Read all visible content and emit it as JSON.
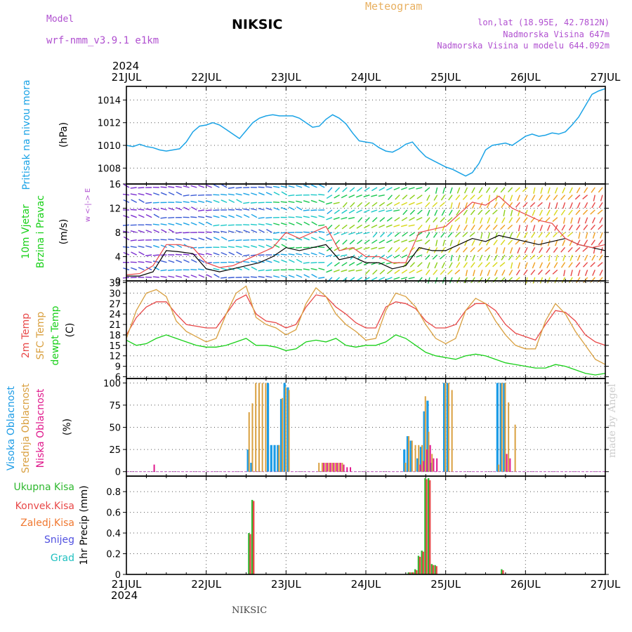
{
  "header": {
    "model_label": "Model",
    "model_name": "wrf-nmm_v3.9.1 e1km",
    "station": "NIKSIC",
    "chart_title": "Meteogram",
    "coords": "lon,lat (18.95E, 42.7812N)",
    "elevation": "Nadmorska Visina 647m",
    "model_elevation": "Nadmorska Visina u modelu 644.092m",
    "footer_station": "NIKSIC",
    "watermark": "made by Angel"
  },
  "colors": {
    "pressure": "#1aa3e6",
    "temp2m": "#e84848",
    "sfc": "#d9a040",
    "dewpt": "#18d018",
    "high_cloud": "#1a9be6",
    "mid_cloud": "#d9a040",
    "low_cloud": "#e0198c",
    "total_precip": "#2fb82f",
    "conv_precip": "#e84848",
    "frozen": "#f07830",
    "snow": "#5050e0",
    "hail": "#20c0c0",
    "grid": "#555555",
    "wind_avg": "#000000",
    "gust": "#e84848"
  },
  "chart_data": {
    "type": "meteogram",
    "year": "2024",
    "x_ticks": [
      "21JUL",
      "22JUL",
      "23JUL",
      "24JUL",
      "25JUL",
      "26JUL",
      "27JUL"
    ],
    "x_hours": [
      0,
      24,
      48,
      72,
      96,
      120,
      144
    ],
    "panels": [
      {
        "id": "pressure",
        "type": "line",
        "ylabels": [
          "Pritisak na nivou mora",
          "(hPa)"
        ],
        "ylim": [
          1006.6,
          1015.2
        ],
        "yticks": [
          1008,
          1010,
          1012,
          1014
        ],
        "series": [
          {
            "name": "Pritisak na nivou mora",
            "x_hours": [
              0,
              2,
              4,
              6,
              8,
              10,
              12,
              14,
              16,
              18,
              20,
              22,
              24,
              26,
              28,
              30,
              32,
              34,
              36,
              38,
              40,
              42,
              44,
              46,
              48,
              50,
              52,
              54,
              56,
              58,
              60,
              62,
              64,
              66,
              68,
              70,
              72,
              74,
              76,
              78,
              80,
              82,
              84,
              86,
              88,
              90,
              92,
              94,
              96,
              98,
              100,
              102,
              104,
              106,
              108,
              110,
              112,
              114,
              116,
              118,
              120,
              122,
              124,
              126,
              128,
              130,
              132,
              134,
              136,
              138,
              140,
              142,
              144
            ],
            "values": [
              1010.0,
              1009.9,
              1010.1,
              1009.9,
              1009.8,
              1009.6,
              1009.5,
              1009.6,
              1009.7,
              1010.3,
              1011.2,
              1011.7,
              1011.8,
              1012.0,
              1011.8,
              1011.4,
              1011.0,
              1010.6,
              1011.3,
              1012.0,
              1012.4,
              1012.6,
              1012.7,
              1012.6,
              1012.6,
              1012.6,
              1012.4,
              1012.0,
              1011.6,
              1011.7,
              1012.3,
              1012.7,
              1012.4,
              1011.9,
              1011.1,
              1010.4,
              1010.3,
              1010.2,
              1009.8,
              1009.5,
              1009.4,
              1009.7,
              1010.1,
              1010.3,
              1009.6,
              1009.0,
              1008.7,
              1008.4,
              1008.1,
              1007.9,
              1007.6,
              1007.3,
              1007.6,
              1008.4,
              1009.6,
              1010.0,
              1010.1,
              1010.2,
              1010.0,
              1010.4,
              1010.8,
              1011.0,
              1010.8,
              1010.9,
              1011.1,
              1011.0,
              1011.2,
              1011.8,
              1012.5,
              1013.5,
              1014.5,
              1014.8,
              1015.0
            ]
          }
        ]
      },
      {
        "id": "wind",
        "type": "line+barbs",
        "ylabels": [
          "10m Vjetar",
          "Brzina i Pravac",
          "(m/s)"
        ],
        "compass": "w <-|-> E",
        "ylim": [
          0,
          16
        ],
        "yticks": [
          0,
          4,
          8,
          12,
          16
        ],
        "series": [
          {
            "name": "Brzina",
            "x_hours": [
              0,
              4,
              8,
              12,
              16,
              20,
              24,
              28,
              32,
              36,
              40,
              44,
              48,
              52,
              56,
              60,
              64,
              68,
              72,
              76,
              80,
              84,
              88,
              92,
              96,
              100,
              104,
              108,
              112,
              116,
              120,
              124,
              128,
              132,
              136,
              140,
              144
            ],
            "values": [
              0.8,
              0.8,
              1.5,
              5.0,
              4.8,
              4.5,
              2.0,
              1.5,
              2.0,
              2.5,
              3.0,
              4.0,
              5.5,
              5.0,
              5.5,
              6.0,
              3.5,
              4.0,
              3.0,
              3.0,
              2.0,
              2.5,
              5.5,
              5.0,
              5.0,
              6.0,
              7.0,
              6.5,
              7.5,
              7.0,
              6.5,
              6.0,
              6.5,
              7.0,
              6.0,
              5.5,
              5.0
            ]
          },
          {
            "name": "Udar",
            "x_hours": [
              0,
              4,
              8,
              12,
              16,
              20,
              24,
              28,
              32,
              36,
              40,
              44,
              48,
              52,
              56,
              60,
              64,
              68,
              72,
              76,
              80,
              84,
              88,
              92,
              96,
              100,
              104,
              108,
              112,
              116,
              120,
              124,
              128,
              132,
              136,
              140,
              144
            ],
            "values": [
              1.0,
              1.2,
              2.5,
              6.0,
              6.0,
              5.5,
              3.0,
              2.2,
              2.5,
              3.5,
              4.5,
              5.5,
              8.0,
              7.0,
              8.0,
              9.0,
              5.0,
              5.5,
              4.0,
              4.0,
              3.0,
              3.0,
              8.0,
              8.5,
              9.0,
              11.0,
              13.0,
              12.5,
              14.0,
              12.0,
              11.0,
              10.0,
              9.5,
              7.0,
              6.0,
              5.5,
              6.0
            ]
          }
        ]
      },
      {
        "id": "temperature",
        "type": "line",
        "ylabels": [
          "2m Temp",
          "SFC Temp",
          "dewpt Temp",
          "(C)"
        ],
        "ylim": [
          5.5,
          33.5
        ],
        "yticks": [
          6,
          9,
          12,
          15,
          18,
          21,
          24,
          27,
          30,
          33
        ],
        "x_hours": [
          0,
          3,
          6,
          9,
          12,
          15,
          18,
          21,
          24,
          27,
          30,
          33,
          36,
          39,
          42,
          45,
          48,
          51,
          54,
          57,
          60,
          63,
          66,
          69,
          72,
          75,
          78,
          81,
          84,
          87,
          90,
          93,
          96,
          99,
          102,
          105,
          108,
          111,
          114,
          117,
          120,
          123,
          126,
          129,
          132,
          135,
          138,
          141,
          144
        ],
        "series": [
          {
            "name": "2m Temp",
            "values": [
              18,
              23,
              26,
              27.5,
              27.5,
              24,
              21,
              20.5,
              20,
              20,
              24,
              28,
              29.5,
              24,
              22,
              21.5,
              20,
              21,
              26,
              29.5,
              29,
              26,
              24,
              21.5,
              20,
              20,
              26,
              27.5,
              27,
              25.5,
              22,
              20,
              20,
              21,
              25,
              27,
              27,
              25,
              21,
              18.5,
              17.5,
              16.5,
              21,
              25,
              24.5,
              22,
              18,
              16,
              15
            ]
          },
          {
            "name": "SFC Temp",
            "values": [
              17,
              25,
              30,
              31,
              29,
              22,
              19,
              17.5,
              16,
              17,
              24,
              30,
              32,
              23,
              21,
              20,
              18,
              19.5,
              27,
              31.5,
              29,
              24,
              21,
              19,
              16.5,
              17,
              25,
              30,
              29,
              26,
              21,
              17,
              15.5,
              17,
              25,
              28.5,
              27,
              22,
              18,
              15,
              14,
              14,
              22,
              27,
              24,
              19,
              15,
              11,
              9.5
            ]
          },
          {
            "name": "dewpt Temp",
            "values": [
              16.5,
              15,
              15.5,
              17,
              18,
              17,
              16,
              15,
              14.5,
              14.5,
              15,
              16,
              17,
              15,
              15,
              14.5,
              13.5,
              14,
              16,
              16.5,
              16,
              17,
              15,
              14.5,
              15,
              15,
              16,
              18,
              17,
              15,
              13,
              12,
              11.5,
              11,
              12,
              12.5,
              12,
              11,
              10,
              9.5,
              9,
              8.5,
              8.5,
              9.5,
              9,
              8,
              7,
              6.5,
              7
            ]
          }
        ]
      },
      {
        "id": "clouds",
        "type": "bar",
        "ylabels": [
          "Visoka Oblacnost",
          "Srednja Oblacnost",
          "Niska Oblacnost",
          "(%)"
        ],
        "ylim": [
          -5,
          105
        ],
        "yticks": [
          0,
          25,
          50,
          75,
          100
        ],
        "series": [
          {
            "name": "Visoka Oblacnost",
            "x_hours": [
              37,
              38,
              43,
              44,
              45,
              46,
              47,
              48,
              49,
              50,
              51,
              84,
              85,
              86,
              88,
              89,
              90,
              91,
              92,
              93,
              94,
              95,
              96,
              97,
              112,
              113,
              114,
              115
            ],
            "values": [
              25,
              10,
              100,
              30,
              30,
              30,
              82,
              100,
              95,
              0,
              0,
              25,
              40,
              35,
              15,
              28,
              68,
              80,
              10,
              0,
              0,
              0,
              100,
              100,
              100,
              100,
              100,
              0
            ]
          },
          {
            "name": "Srednja Oblacnost",
            "x_hours": [
              37,
              38,
              39,
              40,
              41,
              42,
              46,
              47,
              48,
              49,
              58,
              59,
              60,
              61,
              62,
              63,
              64,
              65,
              66,
              84,
              85,
              86,
              87,
              88,
              89,
              90,
              91,
              92,
              96,
              97,
              98,
              112,
              113,
              114,
              115,
              116,
              117
            ],
            "values": [
              67,
              77,
              100,
              100,
              100,
              100,
              30,
              83,
              95,
              92,
              10,
              10,
              10,
              10,
              10,
              10,
              10,
              10,
              0,
              10,
              40,
              35,
              30,
              30,
              30,
              85,
              45,
              20,
              100,
              100,
              92,
              8,
              100,
              100,
              78,
              0,
              53
            ]
          },
          {
            "name": "Niska Oblacnost",
            "x_hours": [
              8,
              59,
              60,
              61,
              62,
              63,
              64,
              65,
              66,
              67,
              88,
              89,
              90,
              91,
              92,
              93,
              114,
              115,
              116
            ],
            "values": [
              8,
              10,
              10,
              10,
              10,
              10,
              10,
              8,
              5,
              5,
              8,
              12,
              25,
              30,
              15,
              15,
              20,
              15,
              0
            ]
          }
        ]
      },
      {
        "id": "precip",
        "type": "bar",
        "ylabels": [
          "Ukupna Kisa",
          "Konvek.Kisa",
          "Zaledj.Kisa",
          "Snijeg",
          "Grad",
          "1hr Precip (mm)"
        ],
        "ylim": [
          0,
          0.95
        ],
        "yticks": [
          0,
          0.2,
          0.4,
          0.6,
          0.8
        ],
        "series": [
          {
            "name": "Ukupna Kisa",
            "x_hours": [
              37,
              38,
              85,
              86,
              87,
              88,
              89,
              90,
              91,
              92,
              93,
              113
            ],
            "values": [
              0.4,
              0.72,
              0.02,
              0.02,
              0.05,
              0.18,
              0.23,
              0.93,
              0.93,
              0.1,
              0.09,
              0.05
            ]
          },
          {
            "name": "Konvek.Kisa",
            "x_hours": [
              37,
              38,
              85,
              86,
              87,
              88,
              89,
              90,
              91,
              92,
              93,
              113
            ],
            "values": [
              0.39,
              0.71,
              0.02,
              0.02,
              0.04,
              0.17,
              0.22,
              0.92,
              0.91,
              0.09,
              0.08,
              0.04
            ]
          }
        ]
      }
    ]
  }
}
